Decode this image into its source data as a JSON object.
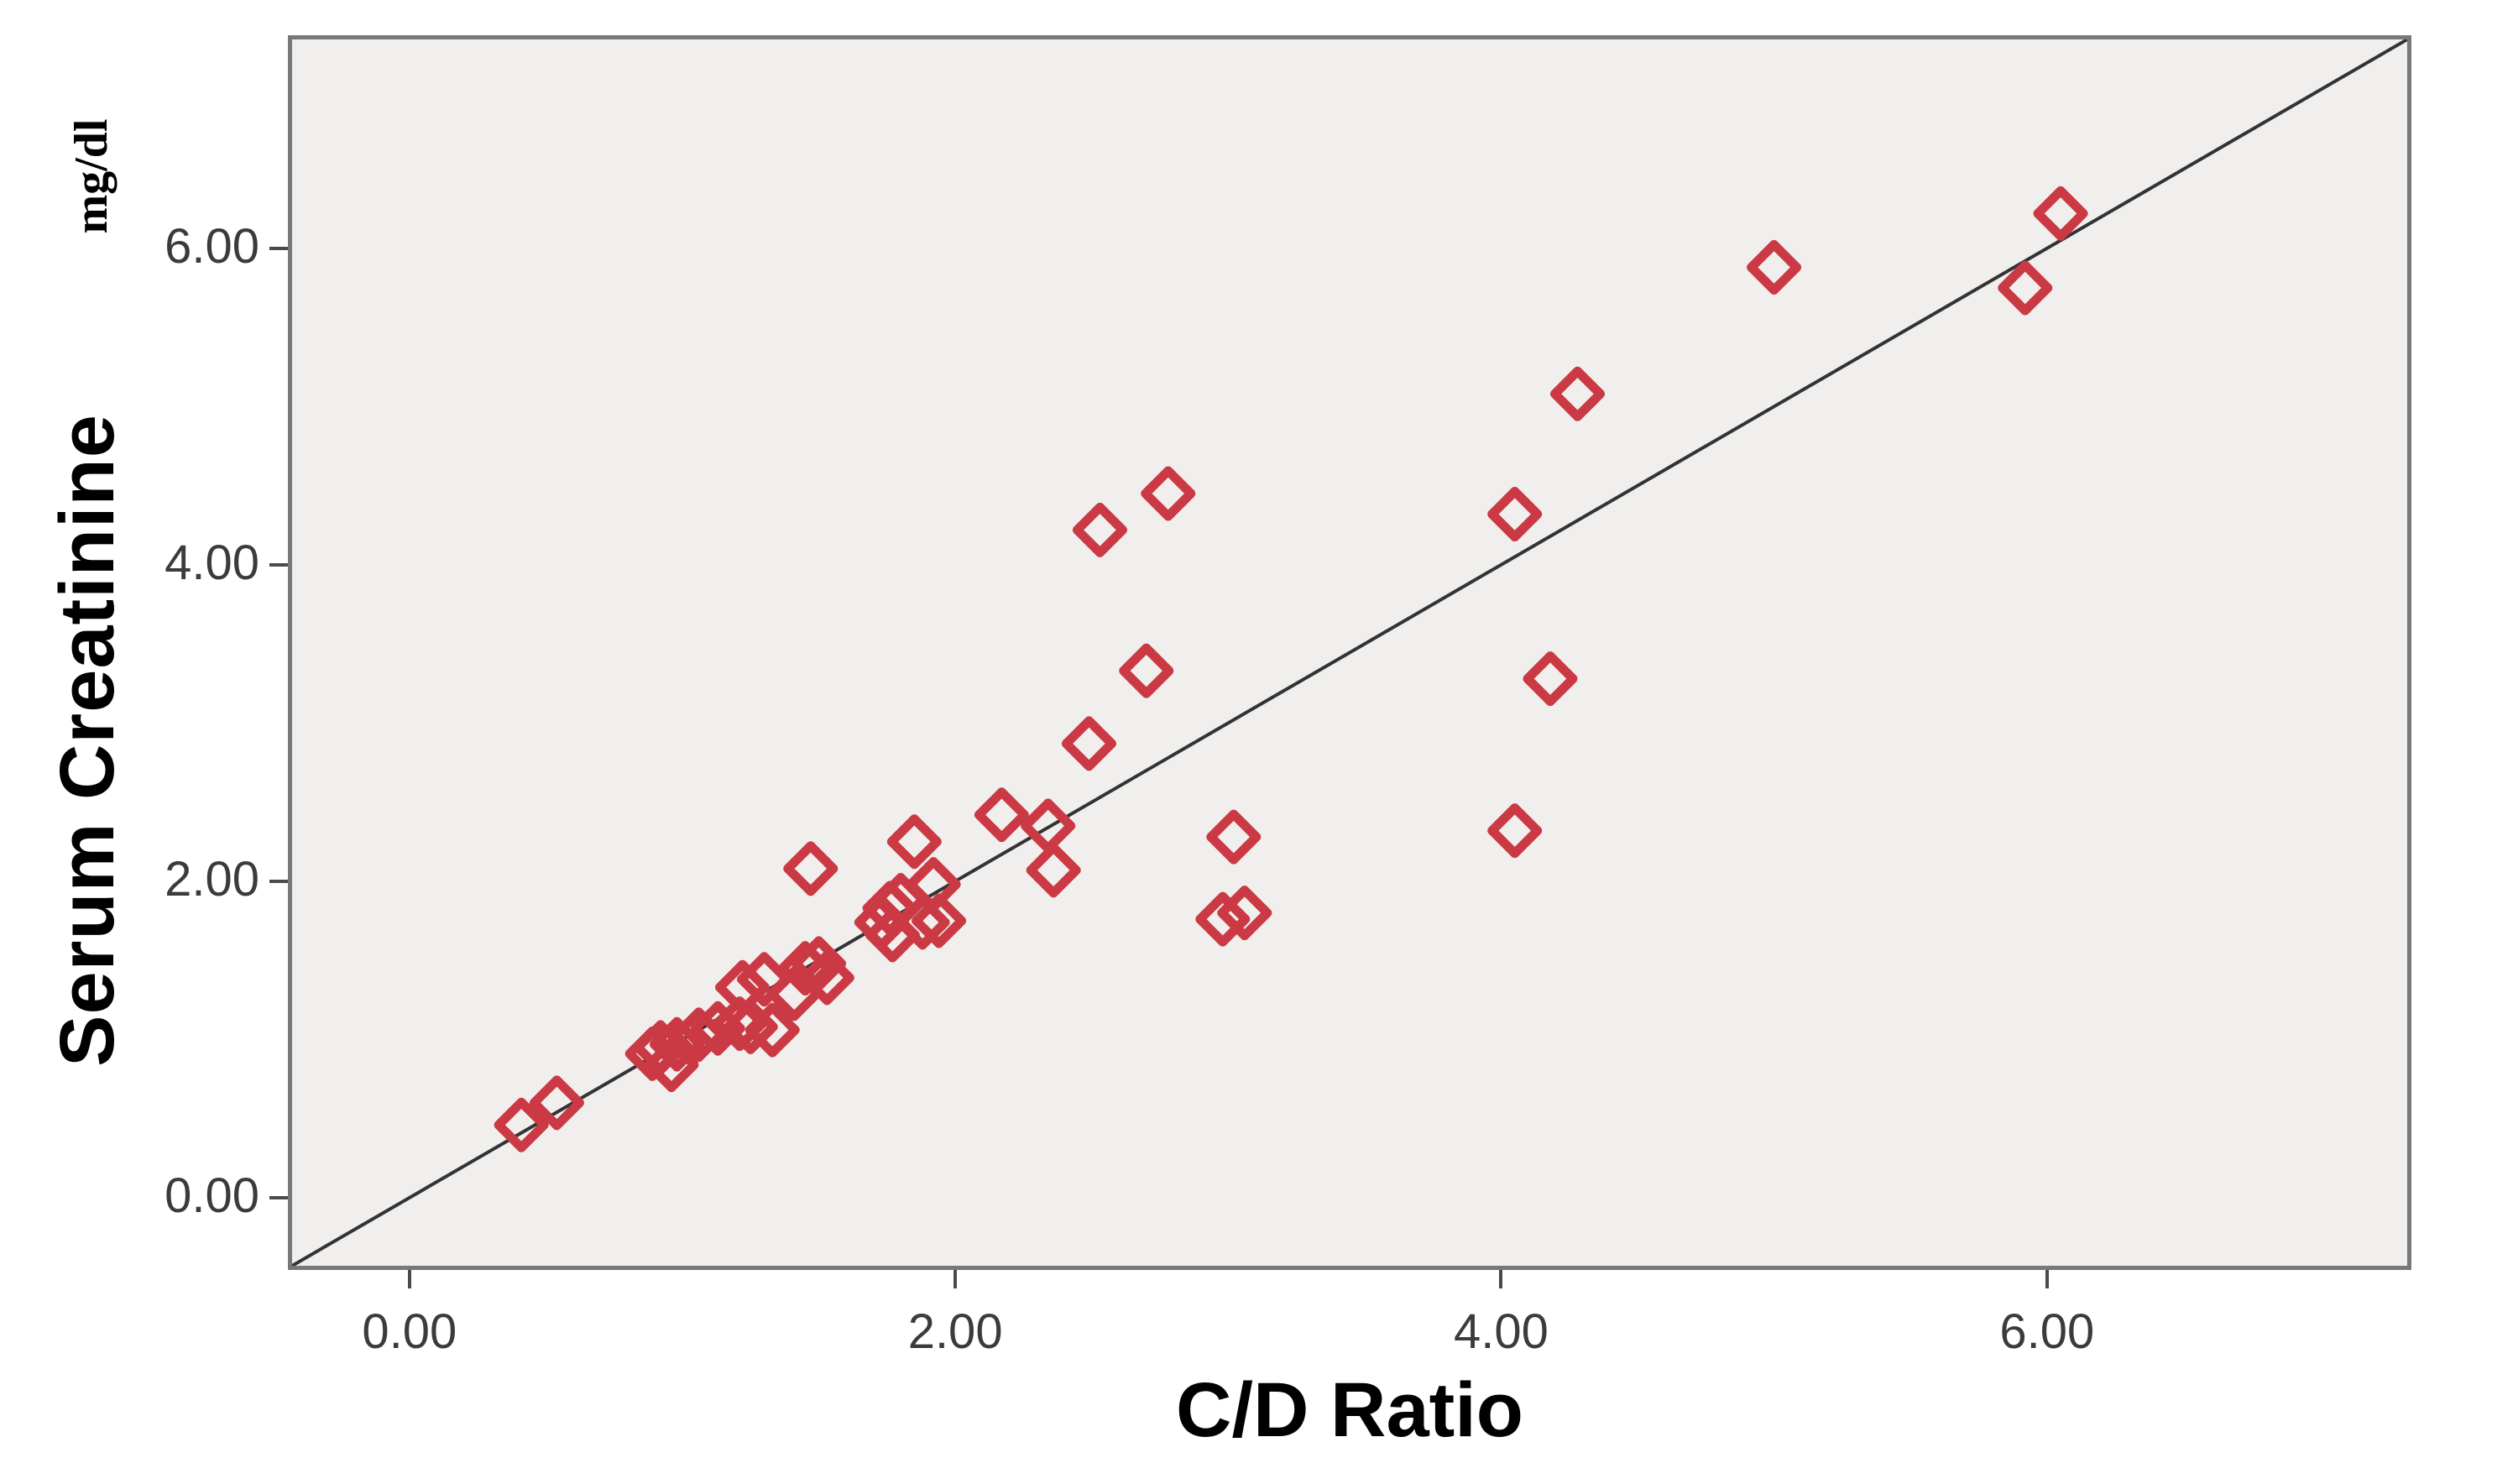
{
  "figure": {
    "background": "#ffffff",
    "plot_background": "#f0efed",
    "panel_border_color": "#787878",
    "tick_color": "#4a4a4a",
    "tick_text_color": "#3b3b3b",
    "title_text_color": "#000000"
  },
  "chart_data": {
    "type": "scatter",
    "title": "",
    "xlabel": "C/D Ratio",
    "ylabel": "Serum Creatinine",
    "ylabel_unit": "mg/dl",
    "xlim": [
      -0.43,
      7.32
    ],
    "ylim": [
      -0.43,
      7.32
    ],
    "x_ticks": [
      0,
      2,
      4,
      6
    ],
    "x_tick_labels": [
      "0.00",
      "2.00",
      "4.00",
      "6.00"
    ],
    "y_ticks": [
      0,
      2,
      4,
      6
    ],
    "y_tick_labels": [
      "0.00",
      "2.00",
      "4.00",
      "6.00"
    ],
    "grid": false,
    "legend": "none",
    "marker": {
      "shape": "open-diamond",
      "color": "#cb3944",
      "size": 54,
      "stroke_width": 11
    },
    "reference_line": {
      "type": "identity y=x",
      "x1": -0.43,
      "y1": -0.43,
      "x2": 7.32,
      "y2": 7.32,
      "color": "#333333",
      "width": 4
    },
    "points": [
      [
        0.41,
        0.46
      ],
      [
        0.54,
        0.6
      ],
      [
        0.89,
        0.91
      ],
      [
        0.92,
        0.95
      ],
      [
        0.98,
        0.97
      ],
      [
        0.96,
        0.84
      ],
      [
        1.06,
        1.03
      ],
      [
        1.13,
        1.07
      ],
      [
        1.21,
        1.1
      ],
      [
        1.25,
        1.08
      ],
      [
        1.33,
        1.06
      ],
      [
        1.22,
        1.33
      ],
      [
        1.3,
        1.38
      ],
      [
        1.41,
        1.29
      ],
      [
        1.45,
        1.45
      ],
      [
        1.5,
        1.48
      ],
      [
        1.53,
        1.39
      ],
      [
        1.47,
        2.08
      ],
      [
        1.73,
        1.74
      ],
      [
        1.76,
        1.83
      ],
      [
        1.8,
        1.88
      ],
      [
        1.77,
        1.66
      ],
      [
        1.88,
        1.74
      ],
      [
        1.94,
        1.75
      ],
      [
        1.92,
        1.98
      ],
      [
        1.85,
        2.25
      ],
      [
        2.17,
        2.42
      ],
      [
        2.34,
        2.35
      ],
      [
        2.36,
        2.07
      ],
      [
        2.49,
        2.87
      ],
      [
        2.53,
        4.22
      ],
      [
        2.78,
        4.45
      ],
      [
        2.7,
        3.33
      ],
      [
        3.02,
        2.28
      ],
      [
        2.98,
        1.76
      ],
      [
        3.06,
        1.8
      ],
      [
        4.05,
        4.32
      ],
      [
        4.28,
        5.08
      ],
      [
        4.05,
        2.32
      ],
      [
        4.18,
        3.28
      ],
      [
        5.0,
        5.88
      ],
      [
        5.92,
        5.75
      ],
      [
        6.05,
        6.22
      ]
    ]
  }
}
